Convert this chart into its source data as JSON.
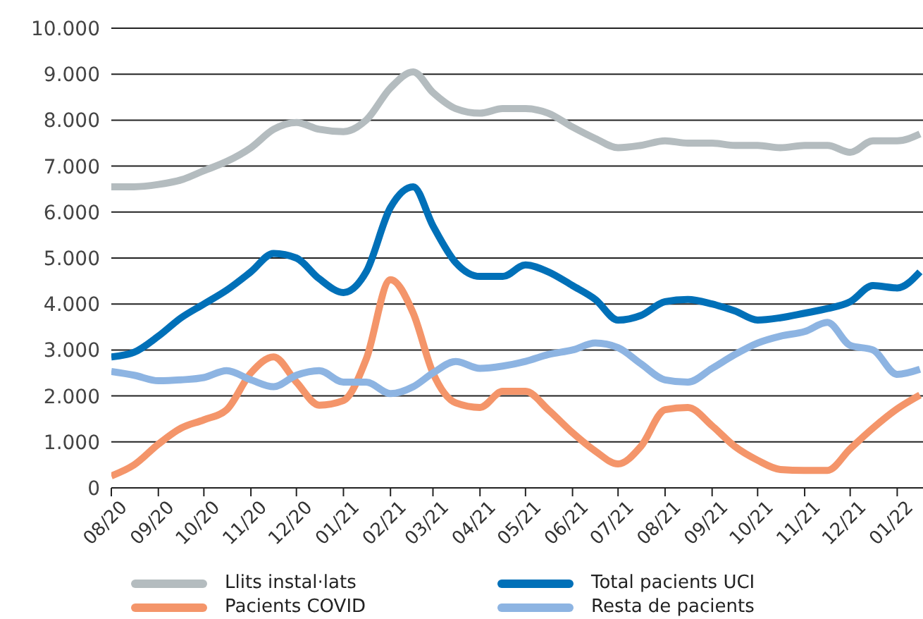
{
  "chart_data": {
    "type": "line",
    "x": [
      "2020-08-01",
      "2020-08-16",
      "2020-09-01",
      "2020-09-16",
      "2020-10-01",
      "2020-10-16",
      "2020-11-01",
      "2020-11-16",
      "2020-12-01",
      "2020-12-16",
      "2021-01-01",
      "2021-01-16",
      "2021-02-01",
      "2021-02-16",
      "2021-03-01",
      "2021-03-16",
      "2021-04-01",
      "2021-04-16",
      "2021-05-01",
      "2021-05-16",
      "2021-06-01",
      "2021-06-16",
      "2021-07-01",
      "2021-07-16",
      "2021-08-01",
      "2021-08-16",
      "2021-09-01",
      "2021-09-16",
      "2021-10-01",
      "2021-10-16",
      "2021-11-01",
      "2021-11-16",
      "2021-12-01",
      "2021-12-16",
      "2022-01-01",
      "2022-01-16"
    ],
    "series": [
      {
        "name": "Llits instal·lats",
        "color": "#b4bcbf",
        "values": [
          6550,
          6550,
          6600,
          6700,
          6900,
          7100,
          7400,
          7800,
          7950,
          7800,
          7750,
          8000,
          8700,
          9050,
          8600,
          8250,
          8150,
          8250,
          8250,
          8150,
          7850,
          7600,
          7400,
          7450,
          7550,
          7500,
          7500,
          7450,
          7450,
          7400,
          7450,
          7450,
          7300,
          7550,
          7550,
          7700
        ]
      },
      {
        "name": "Total pacients UCI",
        "color": "#0070b8",
        "values": [
          2850,
          2950,
          3300,
          3700,
          4000,
          4300,
          4700,
          5100,
          5000,
          4550,
          4250,
          4700,
          6100,
          6550,
          5700,
          4900,
          4600,
          4600,
          4850,
          4700,
          4400,
          4100,
          3650,
          3750,
          4050,
          4100,
          4000,
          3850,
          3650,
          3700,
          3800,
          3900,
          4050,
          4400,
          4350,
          4700
        ]
      },
      {
        "name": "Pacients COVID",
        "color": "#f4956a",
        "values": [
          260,
          500,
          950,
          1300,
          1480,
          1700,
          2500,
          2850,
          2300,
          1800,
          1900,
          2800,
          4530,
          3800,
          2500,
          1850,
          1750,
          2100,
          2100,
          1700,
          1200,
          800,
          520,
          900,
          1700,
          1750,
          1350,
          900,
          600,
          400,
          380,
          380,
          850,
          1300,
          1720,
          2020
        ]
      },
      {
        "name": "Resta de pacients",
        "color": "#8db4e2",
        "values": [
          2530,
          2450,
          2330,
          2350,
          2400,
          2550,
          2350,
          2200,
          2450,
          2550,
          2300,
          2300,
          2050,
          2200,
          2500,
          2750,
          2600,
          2650,
          2750,
          2900,
          3000,
          3150,
          3050,
          2700,
          2350,
          2300,
          2600,
          2900,
          3150,
          3300,
          3400,
          3600,
          3100,
          3000,
          2470,
          2580
        ]
      }
    ],
    "xlim": [
      "2020-08-01",
      "2022-01-18"
    ],
    "xticks": [
      {
        "value": "2020-08-01",
        "label": "08/20"
      },
      {
        "value": "2020-09-01",
        "label": "09/20"
      },
      {
        "value": "2020-10-01",
        "label": "10/20"
      },
      {
        "value": "2020-11-01",
        "label": "11/20"
      },
      {
        "value": "2020-12-01",
        "label": "12/20"
      },
      {
        "value": "2021-01-01",
        "label": "01/21"
      },
      {
        "value": "2021-02-01",
        "label": "02/21"
      },
      {
        "value": "2021-03-01",
        "label": "03/21"
      },
      {
        "value": "2021-04-01",
        "label": "04/21"
      },
      {
        "value": "2021-05-01",
        "label": "05/21"
      },
      {
        "value": "2021-06-01",
        "label": "06/21"
      },
      {
        "value": "2021-07-01",
        "label": "07/21"
      },
      {
        "value": "2021-08-01",
        "label": "08/21"
      },
      {
        "value": "2021-09-01",
        "label": "09/21"
      },
      {
        "value": "2021-10-01",
        "label": "10/21"
      },
      {
        "value": "2021-11-01",
        "label": "11/21"
      },
      {
        "value": "2021-12-01",
        "label": "12/21"
      },
      {
        "value": "2022-01-01",
        "label": "01/22"
      }
    ],
    "ylim": [
      0,
      10000
    ],
    "yticks": [
      0,
      {
        "value": 1000,
        "label": "1.000"
      },
      {
        "value": 2000,
        "label": "2.000"
      },
      {
        "value": 3000,
        "label": "3.000"
      },
      {
        "value": 4000,
        "label": "4.000"
      },
      {
        "value": 5000,
        "label": "5.000"
      },
      {
        "value": 6000,
        "label": "6.000"
      },
      {
        "value": 7000,
        "label": "7.000"
      },
      {
        "value": 8000,
        "label": "8.000"
      },
      {
        "value": 9000,
        "label": "9.000"
      },
      {
        "value": 10000,
        "label": "10.000"
      }
    ],
    "grid": "y",
    "legend": "bottom",
    "marker": "none",
    "line_style": "solid"
  }
}
